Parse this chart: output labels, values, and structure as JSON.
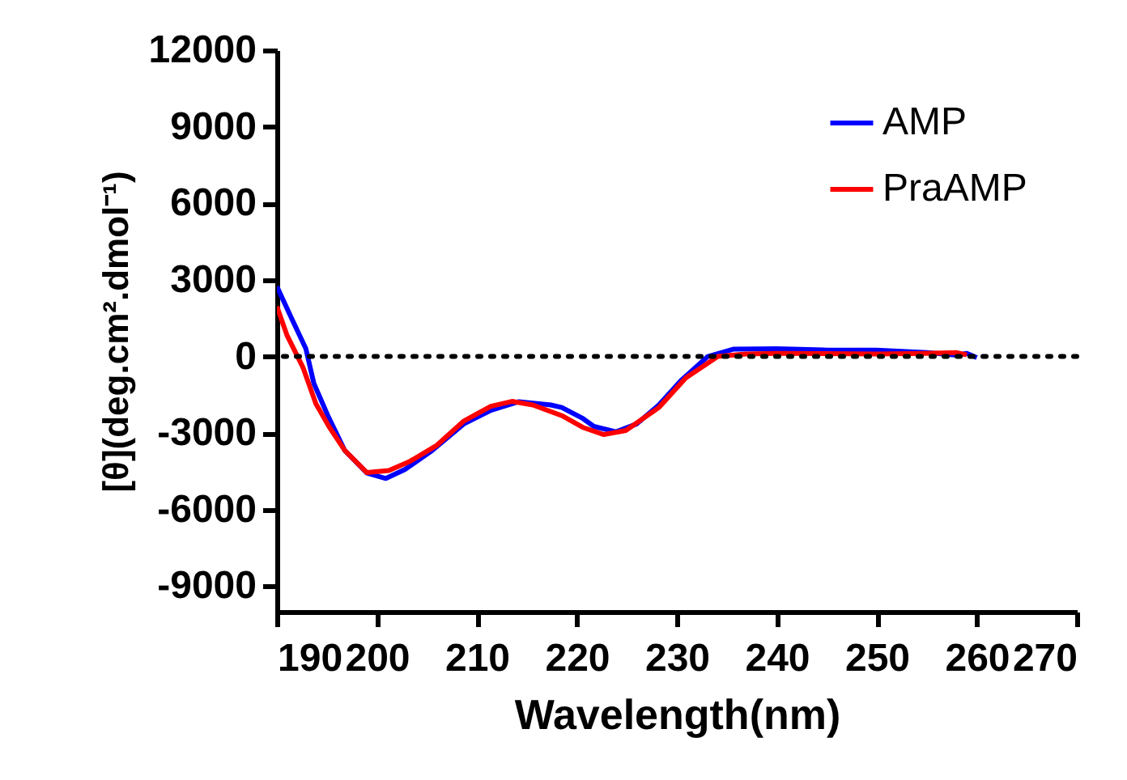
{
  "chart_data": {
    "type": "line",
    "xlabel": "Wavelength(nm)",
    "ylabel": "[θ](deg.cm².dmol⁻¹)",
    "xlim": [
      190,
      270
    ],
    "xticks": [
      190,
      200,
      210,
      220,
      230,
      240,
      250,
      260,
      270
    ],
    "ylim": [
      -10000,
      12000
    ],
    "yticks": [
      -9000,
      -6000,
      -3000,
      0,
      3000,
      6000,
      9000,
      12000
    ],
    "grid": false,
    "legend": "top right",
    "marker": "none",
    "line_style": "solid",
    "ref_lines": [
      {
        "axis": "y",
        "value": 0,
        "line_style": "dotted",
        "color": "#000000"
      }
    ],
    "series": [
      {
        "name": "AMP",
        "color": "#0000ff",
        "x": [
          190,
          191.5,
          192.9,
          193.7,
          195.1,
          196.8,
          199,
          200.9,
          202.8,
          205.5,
          208.7,
          211.4,
          214.2,
          217.4,
          218.5,
          220.6,
          221.7,
          223.9,
          226,
          228.2,
          230.4,
          233.1,
          235.7,
          240,
          245,
          250,
          255,
          258,
          259,
          260
        ],
        "values": [
          2740,
          1470,
          300,
          -1060,
          -2320,
          -3690,
          -4570,
          -4780,
          -4430,
          -3690,
          -2640,
          -2110,
          -1770,
          -1900,
          -2000,
          -2430,
          -2740,
          -2950,
          -2640,
          -1900,
          -950,
          0,
          290,
          300,
          250,
          250,
          150,
          50,
          120,
          -50
        ]
      },
      {
        "name": "PraAMP",
        "color": "#ff0000",
        "x": [
          190,
          191,
          192.6,
          193.9,
          195.2,
          196.8,
          199,
          201.2,
          203.3,
          206,
          208.7,
          211.4,
          213.5,
          215.6,
          218.5,
          220.6,
          222.7,
          224.9,
          228.2,
          230.9,
          234.1,
          236.9,
          240,
          250,
          255,
          258,
          259
        ],
        "values": [
          1960,
          840,
          -420,
          -1850,
          -2740,
          -3690,
          -4550,
          -4470,
          -4110,
          -3480,
          -2530,
          -1950,
          -1760,
          -1900,
          -2320,
          -2780,
          -3060,
          -2900,
          -2000,
          -840,
          0,
          100,
          120,
          100,
          120,
          150,
          60
        ]
      }
    ]
  }
}
